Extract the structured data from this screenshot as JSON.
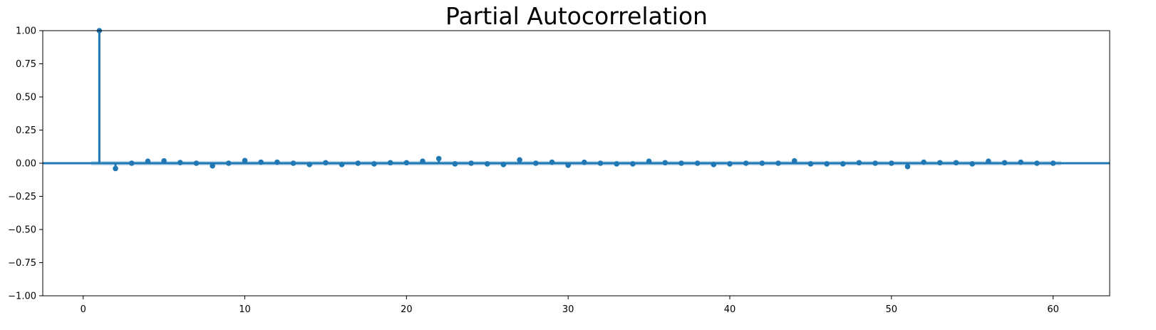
{
  "chart_data": {
    "type": "stem",
    "title": "Partial Autocorrelation",
    "xlabel": "",
    "ylabel": "",
    "xlim": [
      -2.5,
      63.5
    ],
    "ylim": [
      -1.0,
      1.0
    ],
    "grid": false,
    "legend": "none",
    "confidence_band": 0.017,
    "colors": {
      "marker": "#1f77b4",
      "stem": "#1f77b4",
      "band": "#1f77b4",
      "axis": "#000000"
    },
    "x_ticks": [
      0,
      10,
      20,
      30,
      40,
      50,
      60
    ],
    "x_tick_labels": [
      "0",
      "10",
      "20",
      "30",
      "40",
      "50",
      "60"
    ],
    "y_ticks": [
      1.0,
      0.75,
      0.5,
      0.25,
      0.0,
      -0.25,
      -0.5,
      -0.75,
      -1.0
    ],
    "y_tick_labels": [
      "1.00",
      "0.75",
      "0.50",
      "0.25",
      "0.00",
      "−0.25",
      "−0.50",
      "−0.75",
      "−1.00"
    ],
    "x": [
      1,
      2,
      3,
      4,
      5,
      6,
      7,
      8,
      9,
      10,
      11,
      12,
      13,
      14,
      15,
      16,
      17,
      18,
      19,
      20,
      21,
      22,
      23,
      24,
      25,
      26,
      27,
      28,
      29,
      30,
      31,
      32,
      33,
      34,
      35,
      36,
      37,
      38,
      39,
      40,
      41,
      42,
      43,
      44,
      45,
      46,
      47,
      48,
      49,
      50,
      51,
      52,
      53,
      54,
      55,
      56,
      57,
      58,
      59,
      60
    ],
    "values": [
      1.0,
      -0.04,
      0.0,
      0.015,
      0.018,
      0.005,
      0.0,
      -0.02,
      0.0,
      0.02,
      0.008,
      0.008,
      0.0,
      -0.01,
      0.004,
      -0.01,
      0.0,
      -0.005,
      0.004,
      0.004,
      0.015,
      0.035,
      -0.005,
      0.0,
      -0.005,
      -0.01,
      0.025,
      0.0,
      0.008,
      -0.015,
      0.007,
      0.0,
      -0.005,
      -0.005,
      0.015,
      0.004,
      0.0,
      0.0,
      -0.01,
      -0.005,
      0.0,
      0.0,
      0.0,
      0.018,
      -0.005,
      -0.005,
      -0.005,
      0.004,
      0.0,
      0.0,
      -0.025,
      0.008,
      0.004,
      0.004,
      -0.005,
      0.015,
      0.004,
      0.008,
      0.0,
      0.0
    ]
  }
}
